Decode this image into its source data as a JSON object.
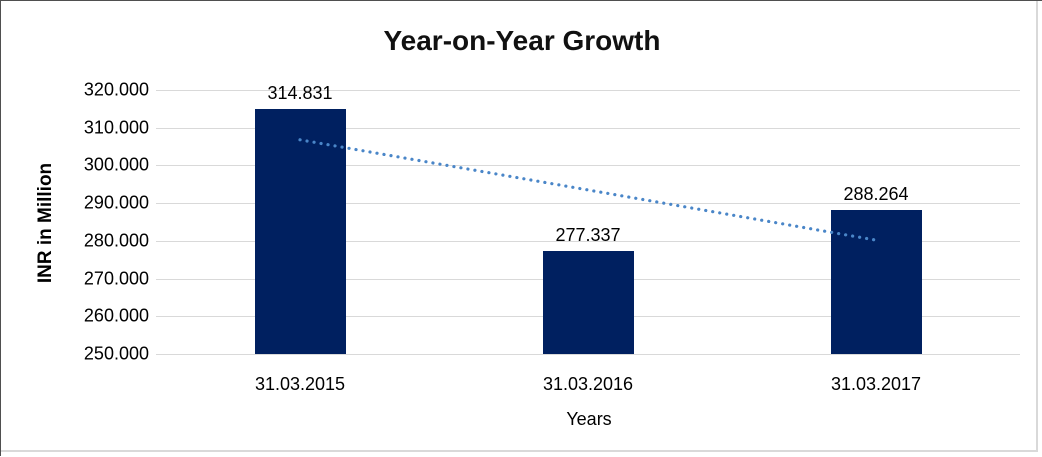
{
  "chart_data": {
    "type": "bar",
    "title": "Year-on-Year Growth",
    "xlabel": "Years",
    "ylabel": "INR in Million",
    "categories": [
      "31.03.2015",
      "31.03.2016",
      "31.03.2017"
    ],
    "values": [
      314.831,
      277.337,
      288.264
    ],
    "data_labels": [
      "314.831",
      "277.337",
      "288.264"
    ],
    "ylim": [
      250,
      320
    ],
    "ytick_step": 10,
    "ytick_labels": [
      "320.000",
      "310.000",
      "300.000",
      "290.000",
      "280.000",
      "270.000",
      "260.000",
      "250.000"
    ],
    "grid": true,
    "legend": "none",
    "bar_color": "#002060",
    "gridline_color": "#d9d9d9",
    "trendline": {
      "type": "linear",
      "style": "dotted",
      "color": "#4a86c8",
      "start_value": 306.8,
      "end_value": 280.2
    }
  }
}
